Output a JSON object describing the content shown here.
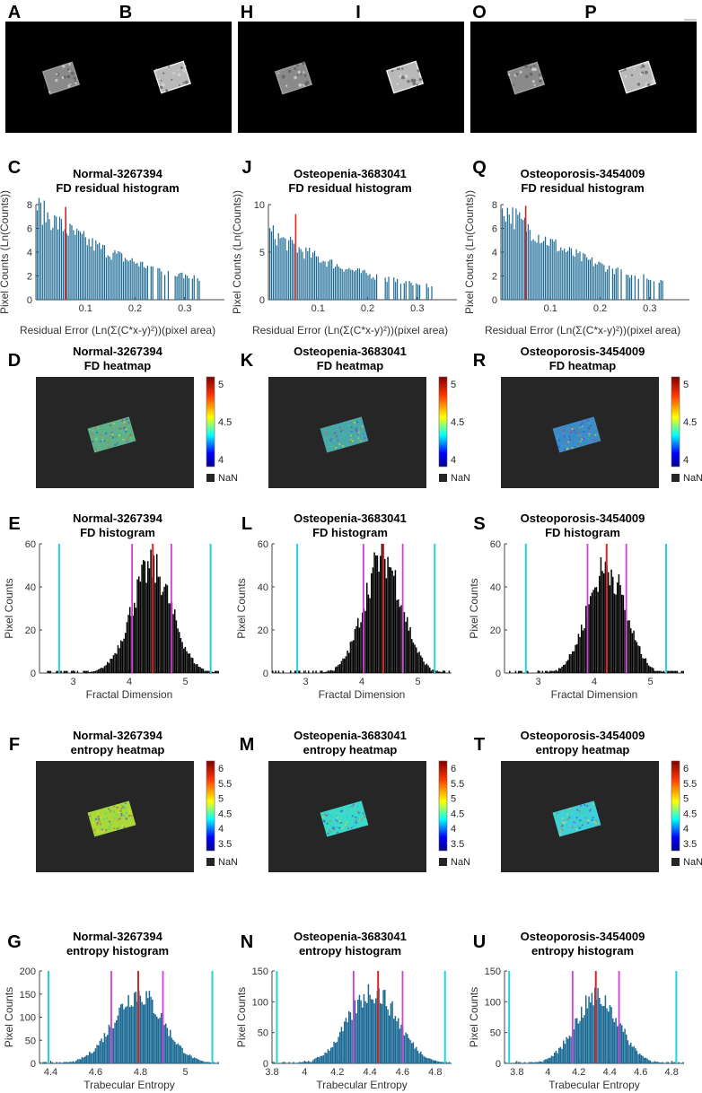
{
  "colors": {
    "bar": "#1b6a94",
    "bar_dark": "#000000",
    "red": "#d62728",
    "magenta": "#d040d8",
    "cyan": "#22d3dd",
    "heat_bg": "#262626",
    "xray_bg": "#000000",
    "axis": "#444444"
  },
  "columns": [
    {
      "xray_labels": [
        "A",
        "B"
      ],
      "resid": {
        "panel": "C",
        "title1": "Normal-3267394",
        "title2": "FD residual histogram",
        "ylabel": "Pixel Counts (Ln(Counts))",
        "xlabel": "Residual Error (Ln(Σ(C*x-y)²))(pixel area)"
      },
      "fdheat": {
        "panel": "D",
        "title1": "Normal-3267394",
        "title2": "FD heatmap",
        "fill": "#5fb18a"
      },
      "fdhist": {
        "panel": "E",
        "title1": "Normal-3267394",
        "title2": "FD histogram",
        "ylabel": "Pixel Counts",
        "xlabel": "Fractal Dimension"
      },
      "entheat": {
        "panel": "F",
        "title1": "Normal-3267394",
        "title2": "entropy heatmap",
        "fill": "#a8d83a"
      },
      "enthist": {
        "panel": "G",
        "title1": "Normal-3267394",
        "title2": "entropy histogram",
        "ylabel": "Pixel Counts",
        "xlabel": "Trabecular Entropy"
      }
    },
    {
      "xray_labels": [
        "H",
        "I"
      ],
      "resid": {
        "panel": "J",
        "title1": "Osteopenia-3683041",
        "title2": "FD residual histogram",
        "ylabel": "Pixel Counts (Ln(Counts))",
        "xlabel": "Residual Error (Ln(Σ(C*x-y)²))(pixel area)"
      },
      "fdheat": {
        "panel": "K",
        "title1": "Osteopenia-3683041",
        "title2": "FD heatmap",
        "fill": "#4aa8a8"
      },
      "fdhist": {
        "panel": "L",
        "title1": "Osteopenia-3683041",
        "title2": "FD histogram",
        "ylabel": "Pixel Counts",
        "xlabel": "Fractal Dimension"
      },
      "entheat": {
        "panel": "M",
        "title1": "Osteopenia-3683041",
        "title2": "entropy heatmap",
        "fill": "#3cd8c8"
      },
      "enthist": {
        "panel": "N",
        "title1": "Osteopenia-3683041",
        "title2": "entropy histogram",
        "ylabel": "Pixel Counts",
        "xlabel": "Trabecular Entropy"
      }
    },
    {
      "xray_labels": [
        "O",
        "P"
      ],
      "resid": {
        "panel": "Q",
        "title1": "Osteoporosis-3454009",
        "title2": "FD residual histogram",
        "ylabel": "Pixel Counts (Ln(Counts))",
        "xlabel": "Residual Error (Ln(Σ(C*x-y)²))(pixel area)"
      },
      "fdheat": {
        "panel": "R",
        "title1": "Osteoporosis-3454009",
        "title2": "FD heatmap",
        "fill": "#3b8cc8"
      },
      "fdhist": {
        "panel": "S",
        "title1": "Osteoporosis-3454009",
        "title2": "FD histogram",
        "ylabel": "Pixel Counts",
        "xlabel": "Fractal Dimension"
      },
      "entheat": {
        "panel": "T",
        "title1": "Osteoporosis-3454009",
        "title2": "entropy heatmap",
        "fill": "#40d0d8"
      },
      "enthist": {
        "panel": "U",
        "title1": "Osteoporosis-3454009",
        "title2": "entropy histogram",
        "ylabel": "Pixel Counts",
        "xlabel": "Trabecular Entropy"
      }
    }
  ],
  "colorbars": {
    "fd": {
      "ticks": [
        "5",
        "4.5",
        "4"
      ],
      "nan": "NaN"
    },
    "entropy": {
      "ticks": [
        "6",
        "5.5",
        "5",
        "4.5",
        "4",
        "3.5"
      ],
      "nan": "NaN"
    }
  },
  "chart_data": [
    {
      "id": "resid-C",
      "type": "bar",
      "ylim": [
        0,
        8
      ],
      "yticks": [
        0,
        2,
        4,
        6,
        8
      ],
      "xlim": [
        0,
        0.38
      ],
      "xticks": [
        0.1,
        0.2,
        0.3
      ],
      "peak": 7.8,
      "decay": 0.22,
      "marker": 0.06
    },
    {
      "id": "resid-J",
      "type": "bar",
      "ylim": [
        0,
        10
      ],
      "yticks": [
        0,
        5,
        10
      ],
      "xlim": [
        0,
        0.38
      ],
      "xticks": [
        0.1,
        0.2,
        0.3
      ],
      "peak": 7.2,
      "decay": 0.2,
      "marker": 0.055,
      "marker_height": 9
    },
    {
      "id": "resid-Q",
      "type": "bar",
      "ylim": [
        0,
        8
      ],
      "yticks": [
        0,
        2,
        4,
        6,
        8
      ],
      "xlim": [
        0,
        0.38
      ],
      "xticks": [
        0.1,
        0.2,
        0.3
      ],
      "peak": 7.9,
      "decay": 0.2,
      "marker": 0.05
    },
    {
      "id": "fd-E",
      "type": "histogram",
      "ylim": [
        0,
        60
      ],
      "yticks": [
        0,
        20,
        40,
        60
      ],
      "xlim": [
        2.4,
        5.6
      ],
      "xticks": [
        3,
        4,
        5
      ],
      "mean": 4.4,
      "sd": 0.36,
      "peak": 50,
      "red": 4.42,
      "magenta": [
        4.05,
        4.75
      ],
      "cyan": [
        2.75,
        5.45
      ]
    },
    {
      "id": "fd-L",
      "type": "histogram",
      "ylim": [
        0,
        60
      ],
      "yticks": [
        0,
        20,
        40,
        60
      ],
      "xlim": [
        2.4,
        5.6
      ],
      "xticks": [
        3,
        4,
        5
      ],
      "mean": 4.38,
      "sd": 0.34,
      "peak": 55,
      "red": 4.38,
      "magenta": [
        4.03,
        4.73
      ],
      "cyan": [
        2.85,
        5.3
      ]
    },
    {
      "id": "fd-S",
      "type": "histogram",
      "ylim": [
        0,
        60
      ],
      "yticks": [
        0,
        20,
        40,
        60
      ],
      "xlim": [
        2.4,
        5.6
      ],
      "xticks": [
        3,
        4,
        5
      ],
      "mean": 4.22,
      "sd": 0.34,
      "peak": 50,
      "red": 4.22,
      "magenta": [
        3.88,
        4.57
      ],
      "cyan": [
        2.78,
        5.28
      ]
    },
    {
      "id": "ent-G",
      "type": "histogram",
      "ylim": [
        0,
        200
      ],
      "yticks": [
        0,
        50,
        100,
        150,
        200
      ],
      "xlim": [
        4.35,
        5.15
      ],
      "xticks": [
        4.4,
        4.6,
        4.8,
        5
      ],
      "tick_labels": [
        "4.4",
        "4.6",
        "4.8",
        "5"
      ],
      "mean": 4.79,
      "sd": 0.11,
      "peak": 155,
      "red": 4.79,
      "magenta": [
        4.67,
        4.9
      ],
      "cyan": [
        4.39,
        5.12
      ]
    },
    {
      "id": "ent-N",
      "type": "histogram",
      "ylim": [
        0,
        150
      ],
      "yticks": [
        0,
        50,
        100,
        150
      ],
      "xlim": [
        3.8,
        4.9
      ],
      "xticks": [
        3.8,
        4,
        4.2,
        4.4,
        4.6,
        4.8
      ],
      "tick_labels": [
        "3.8",
        "4",
        "4.2",
        "4.4",
        "4.6",
        "4.8"
      ],
      "mean": 4.42,
      "sd": 0.15,
      "peak": 120,
      "red": 4.45,
      "magenta": [
        4.3,
        4.6
      ],
      "cyan": [
        3.83,
        4.86
      ]
    },
    {
      "id": "ent-U",
      "type": "histogram",
      "ylim": [
        0,
        150
      ],
      "yticks": [
        0,
        50,
        100,
        150
      ],
      "xlim": [
        3.72,
        4.88
      ],
      "xticks": [
        3.8,
        4,
        4.2,
        4.4,
        4.6,
        4.8
      ],
      "tick_labels": [
        "3.8",
        "4",
        "4.2",
        "4.4",
        "4.6",
        "4.8"
      ],
      "mean": 4.32,
      "sd": 0.14,
      "peak": 110,
      "red": 4.31,
      "magenta": [
        4.16,
        4.46
      ],
      "cyan": [
        3.75,
        4.83
      ]
    }
  ]
}
